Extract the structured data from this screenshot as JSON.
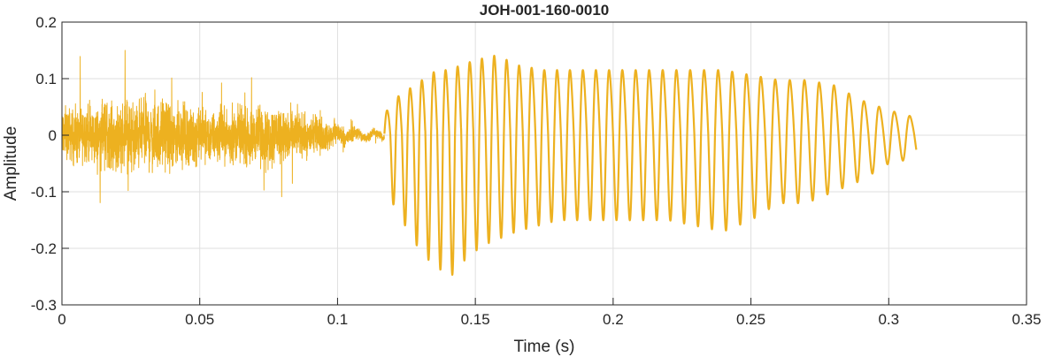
{
  "chart_data": {
    "type": "line",
    "title": "JOH-001-160-0010",
    "xlabel": "Time (s)",
    "ylabel": "Amplitude",
    "xlim": [
      0,
      0.35
    ],
    "ylim": [
      -0.3,
      0.2
    ],
    "xticks": [
      0,
      0.05,
      0.1,
      0.15,
      0.2,
      0.25,
      0.3,
      0.35
    ],
    "yticks": [
      -0.3,
      -0.2,
      -0.1,
      0,
      0.1,
      0.2
    ],
    "xtick_labels": [
      "0",
      "0.05",
      "0.1",
      "0.15",
      "0.2",
      "0.25",
      "0.3",
      "0.35"
    ],
    "ytick_labels": [
      "-0.3",
      "-0.2",
      "-0.1",
      "0",
      "0.1",
      "0.2"
    ],
    "grid": true,
    "line_color": "#EDB120",
    "segments": [
      {
        "label": "noisy-onset",
        "t_start": 0.0,
        "t_end": 0.117,
        "amplitude_envelope": [
          [
            0.0,
            0.07
          ],
          [
            0.01,
            0.08
          ],
          [
            0.025,
            0.1
          ],
          [
            0.04,
            0.09
          ],
          [
            0.05,
            0.07
          ],
          [
            0.06,
            0.07
          ],
          [
            0.08,
            0.08
          ],
          [
            0.09,
            0.05
          ],
          [
            0.1,
            0.03
          ],
          [
            0.11,
            0.015
          ],
          [
            0.117,
            0.01
          ]
        ]
      },
      {
        "label": "voiced-oscillation",
        "t_start": 0.117,
        "t_end": 0.31,
        "period_s": [
          [
            0.12,
            0.0042
          ],
          [
            0.2,
            0.0048
          ],
          [
            0.25,
            0.0052
          ],
          [
            0.31,
            0.0056
          ]
        ],
        "peaks_pos": [
          [
            0.117,
            0.04
          ],
          [
            0.12,
            0.07
          ],
          [
            0.128,
            0.1
          ],
          [
            0.136,
            0.13
          ],
          [
            0.14,
            0.13
          ],
          [
            0.145,
            0.14
          ],
          [
            0.15,
            0.15
          ],
          [
            0.158,
            0.16
          ],
          [
            0.165,
            0.14
          ],
          [
            0.175,
            0.13
          ],
          [
            0.19,
            0.13
          ],
          [
            0.2,
            0.13
          ],
          [
            0.21,
            0.13
          ],
          [
            0.22,
            0.13
          ],
          [
            0.24,
            0.13
          ],
          [
            0.25,
            0.12
          ],
          [
            0.26,
            0.11
          ],
          [
            0.27,
            0.11
          ],
          [
            0.28,
            0.1
          ],
          [
            0.29,
            0.07
          ],
          [
            0.3,
            0.05
          ],
          [
            0.31,
            0.035
          ]
        ],
        "peaks_neg": [
          [
            0.117,
            -0.05
          ],
          [
            0.12,
            -0.12
          ],
          [
            0.128,
            -0.19
          ],
          [
            0.133,
            -0.22
          ],
          [
            0.138,
            -0.24
          ],
          [
            0.141,
            -0.25
          ],
          [
            0.148,
            -0.21
          ],
          [
            0.155,
            -0.19
          ],
          [
            0.165,
            -0.17
          ],
          [
            0.18,
            -0.15
          ],
          [
            0.2,
            -0.15
          ],
          [
            0.22,
            -0.15
          ],
          [
            0.24,
            -0.17
          ],
          [
            0.25,
            -0.15
          ],
          [
            0.26,
            -0.12
          ],
          [
            0.27,
            -0.12
          ],
          [
            0.28,
            -0.1
          ],
          [
            0.29,
            -0.08
          ],
          [
            0.3,
            -0.05
          ],
          [
            0.31,
            -0.04
          ]
        ]
      }
    ]
  }
}
